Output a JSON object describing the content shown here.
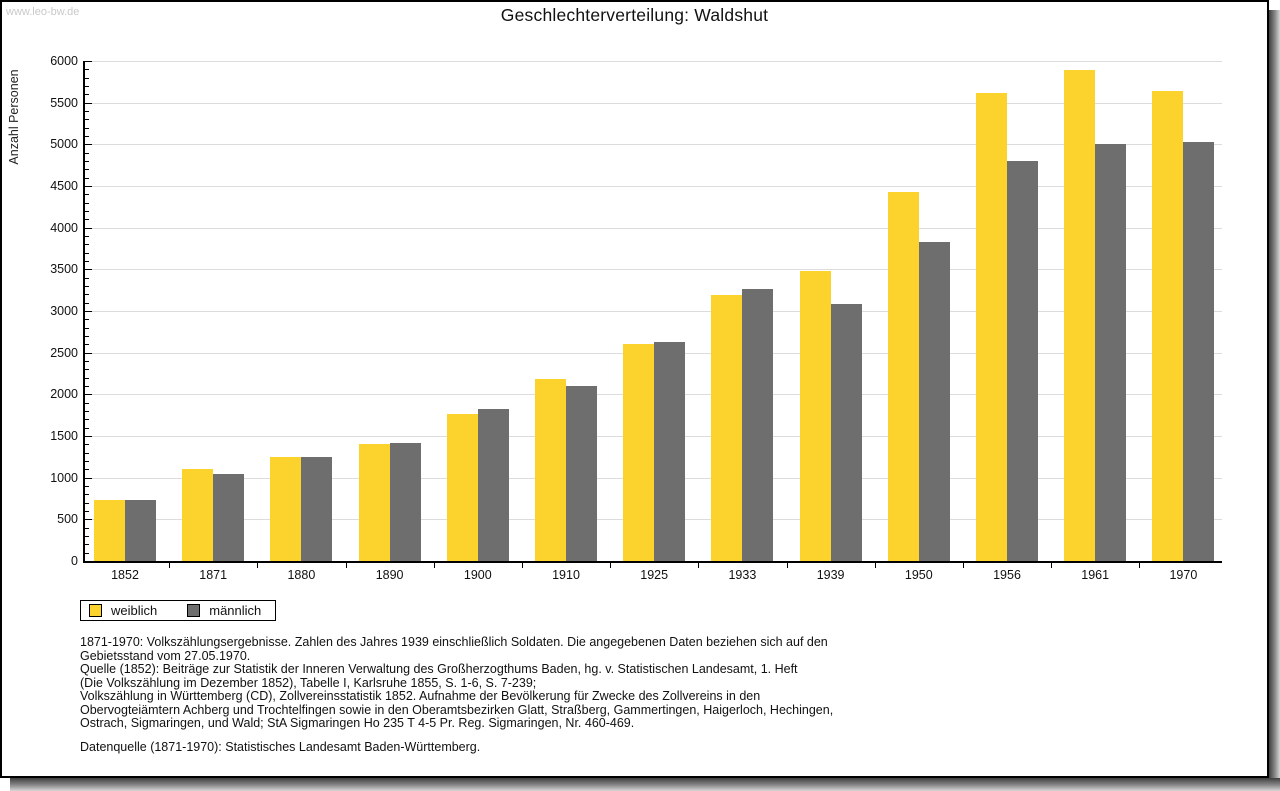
{
  "watermark": "www.leo-bw.de",
  "title": "Geschlechterverteilung: Waldshut",
  "chart_data": {
    "type": "bar",
    "title": "Geschlechterverteilung: Waldshut",
    "xlabel": "",
    "ylabel": "Anzahl Personen",
    "ylim": [
      0,
      6000
    ],
    "ytick_step": 500,
    "minor_tick_step": 100,
    "grid": true,
    "legend_position": "bottom-left",
    "categories": [
      "1852",
      "1871",
      "1880",
      "1890",
      "1900",
      "1910",
      "1925",
      "1933",
      "1939",
      "1950",
      "1956",
      "1961",
      "1970"
    ],
    "series": [
      {
        "name": "weiblich",
        "color": "#FCD22D",
        "values": [
          730,
          1110,
          1250,
          1400,
          1770,
          2180,
          2610,
          3190,
          3480,
          4430,
          5620,
          5890,
          5640
        ]
      },
      {
        "name": "männlich",
        "color": "#6E6E6E",
        "values": [
          730,
          1045,
          1250,
          1420,
          1830,
          2100,
          2630,
          3270,
          3080,
          3830,
          4800,
          5000,
          5030
        ]
      }
    ]
  },
  "footnotes": {
    "block": "1871-1970: Volkszählungsergebnisse. Zahlen des Jahres 1939 einschließlich Soldaten. Die angegebenen Daten beziehen sich auf den\nGebietsstand vom 27.05.1970.\nQuelle (1852): Beiträge zur Statistik der Inneren Verwaltung des Großherzogthums Baden, hg. v. Statistischen Landesamt, 1. Heft\n(Die Volkszählung im Dezember 1852), Tabelle I, Karlsruhe 1855, S. 1-6, S. 7-239;\nVolkszählung in Württemberg (CD), Zollvereinsstatistik 1852. Aufnahme der Bevölkerung für Zwecke des Zollvereins in den\nObervogteiämtern Achberg und Trochtelfingen sowie in den Oberamtsbezirken Glatt, Straßberg, Gammertingen, Haigerloch, Hechingen,\nOstrach, Sigmaringen, und Wald; StA Sigmaringen Ho 235 T 4-5 Pr. Reg. Sigmaringen, Nr. 460-469.",
    "datenquelle": "Datenquelle (1871-1970): Statistisches Landesamt Baden-Württemberg."
  },
  "colors": {
    "female": "#FCD22D",
    "male": "#6E6E6E",
    "gridline": "#dcdcdc",
    "axis": "#000000",
    "watermark": "#c9c9c9"
  }
}
